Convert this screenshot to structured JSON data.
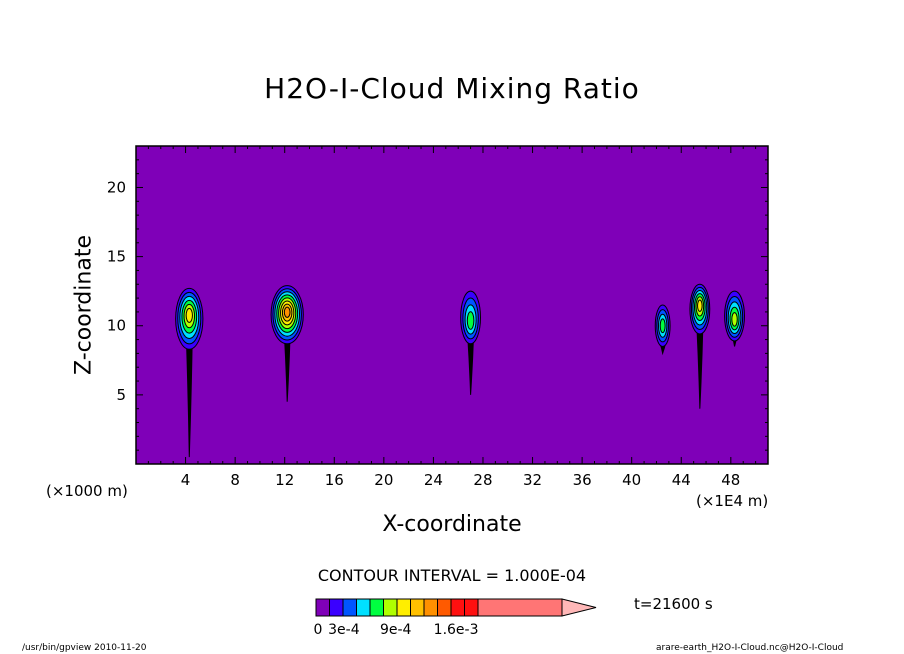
{
  "chart_data": {
    "type": "contour",
    "title": "H2O-I-Cloud Mixing Ratio",
    "xlabel": "X-coordinate",
    "ylabel": "Z-coordinate",
    "x_unit_left": "(×1000 m)",
    "x_unit_right": "(×1E4 m)",
    "xlim": [
      0,
      51
    ],
    "ylim": [
      0,
      23
    ],
    "x_ticks": [
      4,
      8,
      12,
      16,
      20,
      24,
      28,
      32,
      36,
      40,
      44,
      48
    ],
    "y_ticks": [
      5,
      10,
      15,
      20
    ],
    "contour_interval": "CONTOUR INTERVAL = 1.000E-04",
    "time": "t=21600 s",
    "colorbar": {
      "colors": [
        "#7f00b8",
        "#3a00ff",
        "#0055ff",
        "#00e0ff",
        "#00ff40",
        "#b0ff00",
        "#ffee00",
        "#ffc000",
        "#ff9000",
        "#ff5a00",
        "#ff1010",
        "#ff7575",
        "#ffb8b8"
      ],
      "labels": [
        {
          "text": "0",
          "pos": 0
        },
        {
          "text": "3e-4",
          "pos": 3
        },
        {
          "text": "9e-4",
          "pos": 9
        },
        {
          "text": "1.6e-3",
          "pos": 16
        }
      ]
    },
    "background_color": "#7f00b8",
    "clouds": [
      {
        "x": 4.3,
        "z": 10.5,
        "core_z": 10.8,
        "width": 1.1,
        "top": 12.7,
        "levels": 6,
        "tail_bottom": 0.5
      },
      {
        "x": 12.2,
        "z": 10.8,
        "core_z": 11.0,
        "width": 1.3,
        "top": 12.9,
        "levels": 8,
        "tail_bottom": 4.5
      },
      {
        "x": 27.0,
        "z": 10.6,
        "core_z": 10.3,
        "width": 0.8,
        "top": 12.5,
        "levels": 4,
        "tail_bottom": 5.0
      },
      {
        "x": 42.5,
        "z": 10.0,
        "core_z": 10.0,
        "width": 0.6,
        "top": 11.5,
        "levels": 4,
        "tail_bottom": 8.0
      },
      {
        "x": 45.5,
        "z": 11.2,
        "core_z": 11.5,
        "width": 0.8,
        "top": 13.0,
        "levels": 6,
        "tail_bottom": 4.0
      },
      {
        "x": 48.3,
        "z": 10.7,
        "core_z": 10.4,
        "width": 0.8,
        "top": 12.5,
        "levels": 5,
        "tail_bottom": 8.5
      }
    ]
  },
  "footer": {
    "left": "/usr/bin/gpview  2010-11-20",
    "right": "arare-earth_H2O-I-Cloud.nc@H2O-I-Cloud"
  }
}
